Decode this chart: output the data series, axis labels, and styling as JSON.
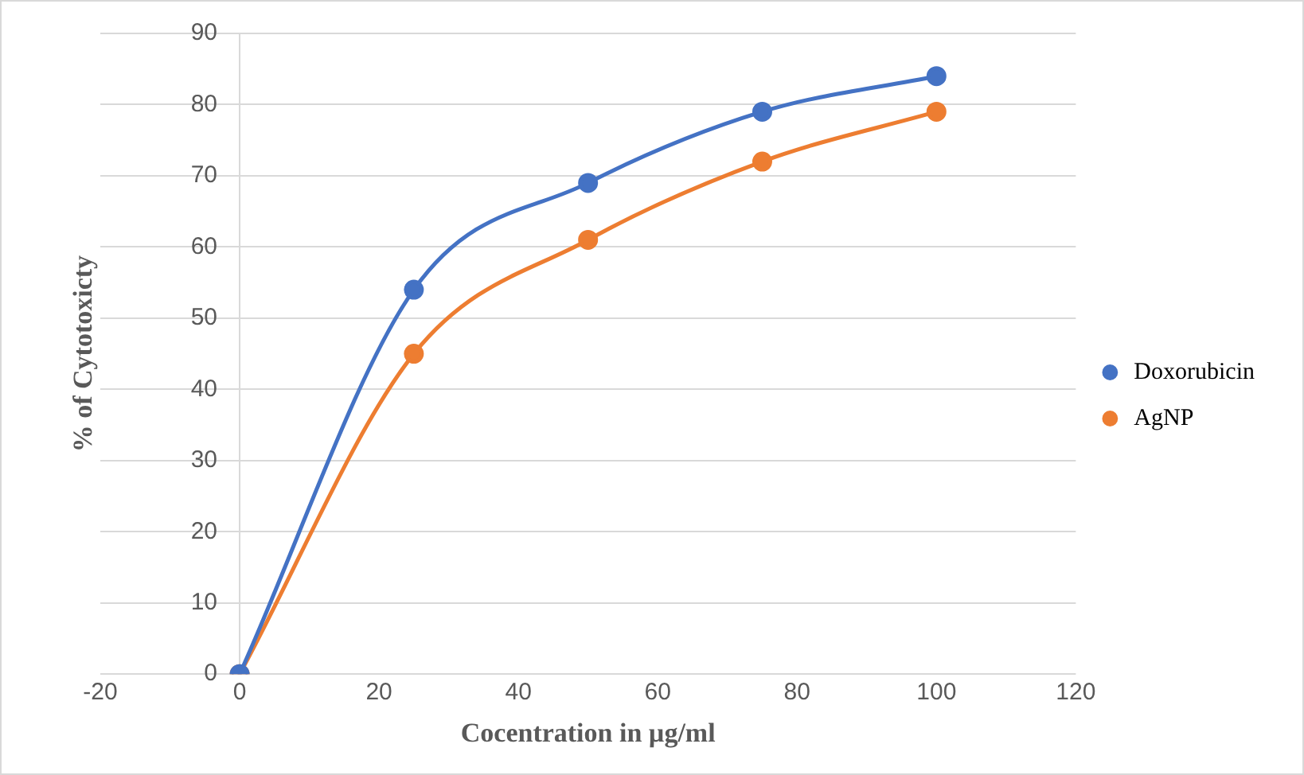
{
  "chart_data": {
    "type": "line",
    "xlabel": "Cocentration in µg/ml",
    "ylabel": "% of Cytotoxicty",
    "x": [
      0,
      25,
      50,
      75,
      100
    ],
    "series": [
      {
        "name": "Doxorubicin",
        "color": "#4472c4",
        "values": [
          0,
          54,
          69,
          79,
          84
        ]
      },
      {
        "name": "AgNP",
        "color": "#ed7d31",
        "values": [
          0,
          45,
          61,
          72,
          79
        ]
      }
    ],
    "xlim": [
      -20,
      120
    ],
    "xticks": [
      -20,
      0,
      20,
      40,
      60,
      80,
      100,
      120
    ],
    "ylim": [
      0,
      90
    ],
    "yticks": [
      0,
      10,
      20,
      30,
      40,
      50,
      60,
      70,
      80,
      90
    ],
    "grid": "y",
    "legend": "right",
    "marker": "circle",
    "line_style": "solid"
  }
}
